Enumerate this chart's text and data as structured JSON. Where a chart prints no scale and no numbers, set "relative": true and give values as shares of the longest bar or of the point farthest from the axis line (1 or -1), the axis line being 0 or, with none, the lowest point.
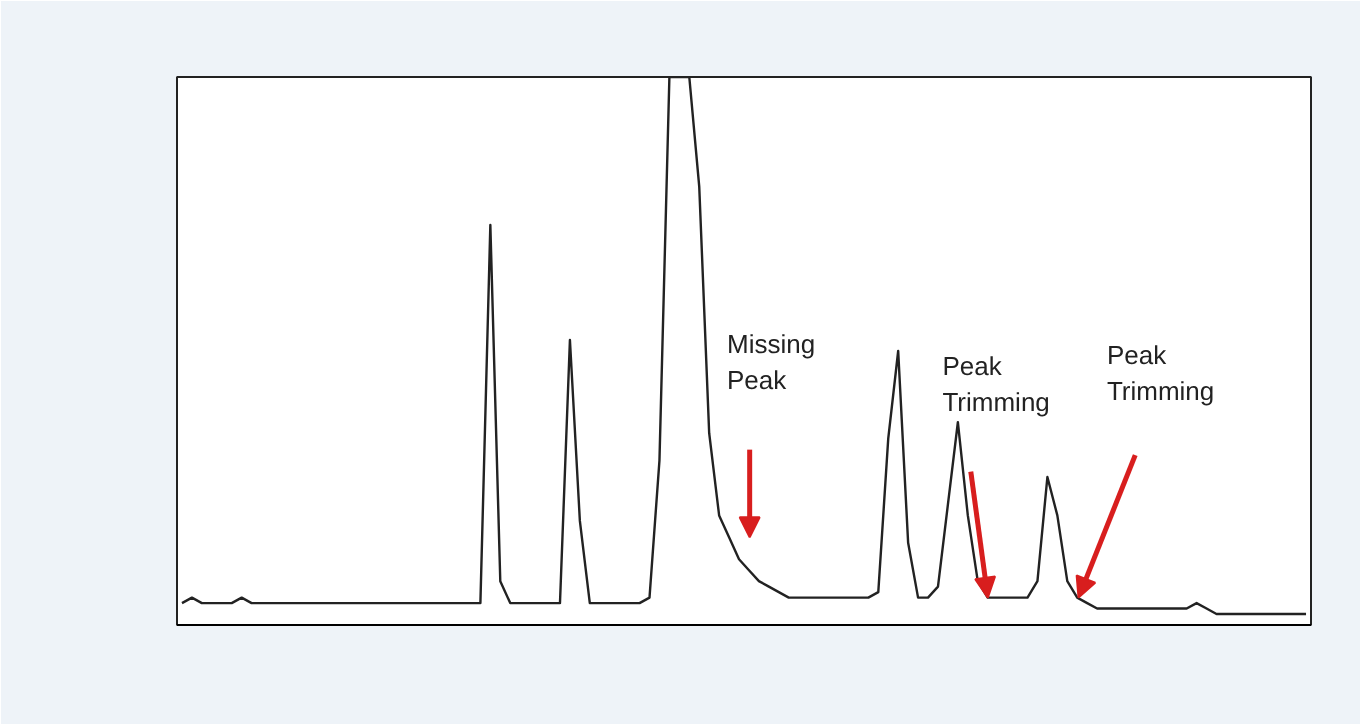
{
  "chart_data": {
    "type": "line",
    "relative": true,
    "grid": false,
    "marker": "none",
    "line_style": "solid",
    "categories": [
      null,
      null,
      null,
      null,
      null,
      null,
      null,
      null,
      null,
      null,
      null,
      null,
      null,
      null,
      null,
      null,
      null,
      null,
      null,
      null,
      null,
      null,
      null,
      null,
      null,
      null,
      null,
      null,
      null,
      null,
      null,
      null,
      null,
      null,
      null,
      null,
      null,
      null,
      null,
      null,
      null,
      null,
      null,
      null,
      null,
      null,
      null,
      null,
      null,
      null,
      null,
      null,
      null,
      null,
      null,
      null,
      null,
      null,
      null,
      null,
      null,
      null,
      null,
      null,
      null,
      null,
      null,
      null,
      null,
      null,
      null,
      null,
      null,
      null,
      null,
      null,
      null,
      null,
      null,
      null,
      null,
      null,
      null,
      null,
      null,
      null,
      null,
      null,
      null,
      null,
      null,
      null,
      null,
      null,
      null,
      null,
      null,
      null,
      null,
      null,
      null,
      null,
      null,
      null,
      null,
      null,
      null,
      null,
      null,
      null,
      null,
      null,
      null,
      null
    ],
    "series": [
      {
        "color": "#222222",
        "values": [
          0.04,
          0.05,
          0.04,
          0.04,
          0.04,
          0.04,
          0.05,
          0.04,
          0.04,
          0.04,
          0.04,
          0.04,
          0.04,
          0.04,
          0.04,
          0.04,
          0.04,
          0.04,
          0.04,
          0.04,
          0.04,
          0.04,
          0.04,
          0.04,
          0.04,
          0.04,
          0.04,
          0.04,
          0.04,
          0.04,
          0.04,
          0.73,
          0.08,
          0.04,
          0.04,
          0.04,
          0.04,
          0.04,
          0.04,
          0.52,
          0.19,
          0.04,
          0.04,
          0.04,
          0.04,
          0.04,
          0.04,
          0.05,
          0.3,
          1,
          1,
          1,
          0.8,
          0.35,
          0.2,
          0.16,
          0.12,
          0.1,
          0.08,
          0.07,
          0.06,
          0.05,
          0.05,
          0.05,
          0.05,
          0.05,
          0.05,
          0.05,
          0.05,
          0.05,
          0.06,
          0.34,
          0.5,
          0.15,
          0.05,
          0.05,
          0.07,
          0.22,
          0.37,
          0.2,
          0.08,
          0.05,
          0.05,
          0.05,
          0.05,
          0.05,
          0.08,
          0.27,
          0.2,
          0.08,
          0.05,
          0.04,
          0.03,
          0.03,
          0.03,
          0.03,
          0.03,
          0.03,
          0.03,
          0.03,
          0.03,
          0.03,
          0.04,
          0.03,
          0.02,
          0.02,
          0.02,
          0.02,
          0.02,
          0.02,
          0.02,
          0.02,
          0.02,
          0.02
        ]
      }
    ],
    "annotations": [
      "Missing Peak",
      "Peak Trimming",
      "Peak Trimming"
    ]
  }
}
